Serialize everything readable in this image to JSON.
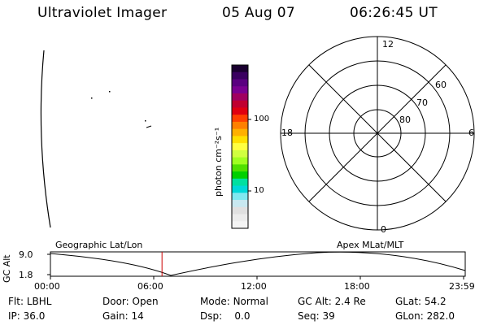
{
  "header": {
    "title": "Ultraviolet Imager",
    "date": "05 Aug 07",
    "time": "06:26:45 UT"
  },
  "colorbar": {
    "label": "photon cm⁻²s⁻¹",
    "ticks": [
      "100",
      "10"
    ],
    "colors": [
      "#1a0030",
      "#3a0060",
      "#5a0080",
      "#7a0090",
      "#a00060",
      "#c00030",
      "#e00010",
      "#ff4000",
      "#ff8000",
      "#ffb000",
      "#ffe000",
      "#ffff40",
      "#d0ff40",
      "#a0ff20",
      "#50e000",
      "#00d000",
      "#00e0a0",
      "#00d8d8",
      "#80e8f0",
      "#c8e8f0",
      "#e0e0e0",
      "#ececec",
      "#f4f4f4"
    ]
  },
  "polar_plot": {
    "labels": {
      "top": "12",
      "bottom": "0",
      "left": "18",
      "right": "6"
    },
    "lat_labels": [
      "60",
      "70",
      "80"
    ]
  },
  "timeline": {
    "y_axis_label": "GC Alt",
    "y_ticks": [
      "9.0",
      "1.8"
    ],
    "left_title": "Geographic Lat/Lon",
    "right_title": "Apex MLat/MLT",
    "x_ticks": [
      "00:00",
      "06:00",
      "12:00",
      "18:00",
      "23:59"
    ],
    "current_time_fraction": 0.269
  },
  "info_rows": [
    [
      {
        "label": "Flt:",
        "value": "LBHL"
      },
      {
        "label": "Door:",
        "value": "Open"
      },
      {
        "label": "Mode:",
        "value": "Normal"
      },
      {
        "label": "GC Alt:",
        "value": "2.4 Re"
      },
      {
        "label": "GLat:",
        "value": "54.2"
      }
    ],
    [
      {
        "label": "IP:",
        "value": "36.0"
      },
      {
        "label": "Gain:",
        "value": "14"
      },
      {
        "label": "Dsp:",
        "value": "0.0"
      },
      {
        "label": "Seq:",
        "value": "39"
      },
      {
        "label": "GLon:",
        "value": "282.0"
      }
    ]
  ]
}
